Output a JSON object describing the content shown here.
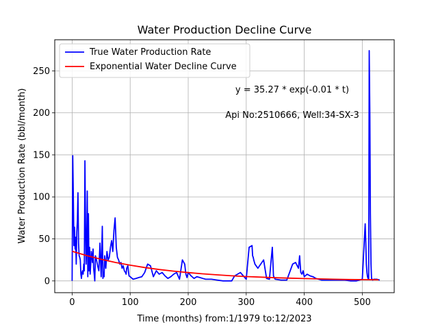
{
  "chart_data": {
    "type": "line",
    "title": "Water Production Decline Curve",
    "xlabel": "Time (months) from:1/1979 to:12/2023",
    "ylabel": "Water Production Rate (bbl/month)",
    "xlim": [
      -30,
      555
    ],
    "ylim": [
      -14,
      287
    ],
    "xticks": [
      0,
      100,
      200,
      300,
      400,
      500
    ],
    "yticks": [
      0,
      50,
      100,
      150,
      200,
      250
    ],
    "grid": true,
    "legend_position": "upper-left",
    "annotations": [
      "y = 35.27 * exp(-0.01 * t)",
      "Api No:2510666, Well:34-SX-3"
    ],
    "series": [
      {
        "name": "True Water Production Rate",
        "color": "#0000ff",
        "x": [
          0,
          1,
          2,
          3,
          4,
          5,
          6,
          7,
          8,
          9,
          10,
          11,
          12,
          13,
          14,
          15,
          16,
          17,
          18,
          19,
          20,
          21,
          22,
          23,
          24,
          25,
          26,
          27,
          28,
          29,
          30,
          31,
          32,
          33,
          34,
          35,
          36,
          37,
          38,
          39,
          40,
          42,
          44,
          46,
          48,
          50,
          52,
          53,
          54,
          55,
          56,
          58,
          60,
          62,
          64,
          66,
          68,
          70,
          72,
          74,
          76,
          78,
          80,
          82,
          84,
          86,
          88,
          90,
          92,
          93,
          94,
          96,
          98,
          100,
          105,
          110,
          115,
          120,
          125,
          130,
          135,
          140,
          145,
          150,
          155,
          160,
          165,
          170,
          175,
          180,
          185,
          190,
          194,
          196,
          198,
          200,
          205,
          210,
          215,
          220,
          225,
          230,
          240,
          250,
          260,
          270,
          275,
          280,
          290,
          300,
          305,
          310,
          311,
          312,
          313,
          315,
          320,
          325,
          330,
          335,
          340,
          345,
          347,
          349,
          350,
          360,
          370,
          380,
          385,
          390,
          392,
          394,
          396,
          398,
          400,
          405,
          410,
          415,
          420,
          425,
          430,
          440,
          450,
          460,
          470,
          480,
          490,
          500,
          505,
          506,
          507,
          508,
          509,
          510,
          511,
          512,
          513,
          514,
          515,
          516,
          517,
          518,
          520,
          525,
          530
        ],
        "y": [
          0,
          149,
          105,
          42,
          64,
          38,
          52,
          20,
          58,
          72,
          105,
          45,
          30,
          28,
          25,
          8,
          3,
          10,
          12,
          8,
          20,
          12,
          143,
          70,
          20,
          40,
          107,
          5,
          80,
          12,
          40,
          8,
          20,
          35,
          30,
          22,
          38,
          15,
          8,
          0,
          30,
          25,
          18,
          12,
          45,
          5,
          65,
          3,
          10,
          5,
          30,
          15,
          35,
          25,
          28,
          40,
          48,
          35,
          60,
          75,
          40,
          28,
          25,
          20,
          22,
          15,
          18,
          12,
          10,
          8,
          15,
          18,
          6,
          5,
          2,
          3,
          4,
          5,
          10,
          20,
          18,
          5,
          12,
          8,
          10,
          6,
          3,
          5,
          8,
          10,
          2,
          25,
          20,
          8,
          4,
          10,
          6,
          3,
          5,
          4,
          3,
          2,
          2,
          1,
          0,
          0,
          0,
          6,
          10,
          2,
          40,
          42,
          30,
          28,
          25,
          20,
          15,
          20,
          25,
          3,
          2,
          40,
          6,
          3,
          2,
          1,
          1,
          20,
          22,
          15,
          30,
          10,
          8,
          12,
          5,
          8,
          6,
          5,
          3,
          2,
          1,
          1,
          1,
          1,
          1,
          0,
          0,
          2,
          68,
          45,
          20,
          10,
          5,
          3,
          2,
          274,
          200,
          80,
          20,
          3,
          2,
          1,
          2,
          2,
          1
        ],
        "render_x": [
          0,
          1,
          2,
          3,
          4,
          5,
          6,
          7,
          8,
          9,
          10,
          11,
          12,
          13,
          14,
          15,
          16,
          17,
          18,
          19,
          20,
          21,
          22,
          23,
          24,
          25,
          26,
          27,
          28,
          29,
          30,
          31,
          32,
          33,
          34,
          35,
          36,
          37,
          38,
          39,
          40,
          42,
          44,
          46,
          48,
          50,
          52,
          53,
          54,
          55,
          56,
          58,
          60,
          62,
          64,
          66,
          68,
          70,
          72,
          74,
          76,
          78,
          80,
          82,
          84,
          86,
          88,
          90,
          92,
          93,
          94,
          96,
          98,
          100,
          105,
          110,
          115,
          120,
          125,
          130,
          135,
          140,
          145,
          150,
          155,
          160,
          165,
          170,
          175,
          180,
          185,
          190,
          194,
          196,
          198,
          200,
          205,
          210,
          215,
          220,
          225,
          230,
          240,
          250,
          260,
          270,
          275,
          280,
          290,
          300,
          305,
          310,
          311,
          312,
          313,
          315,
          320,
          325,
          330,
          335,
          340,
          345,
          347,
          349,
          350,
          360,
          370,
          380,
          385,
          390,
          392,
          394,
          396,
          398,
          400,
          405,
          410,
          415,
          420,
          425,
          430,
          440,
          450,
          460,
          470,
          480,
          490,
          500,
          505,
          506,
          507,
          508,
          509,
          510,
          511,
          512,
          513,
          514,
          515,
          516,
          517,
          518,
          520,
          525,
          530
        ]
      },
      {
        "name": "Exponential Water Decline Curve",
        "color": "#ff0000",
        "x": [
          0,
          25,
          50,
          75,
          100,
          125,
          150,
          175,
          200,
          225,
          250,
          275,
          300,
          325,
          350,
          375,
          400,
          425,
          450,
          475,
          500,
          528
        ],
        "y": [
          35.27,
          30.1,
          25.7,
          21.9,
          18.7,
          15.9,
          13.6,
          11.6,
          9.9,
          8.4,
          7.2,
          6.1,
          5.2,
          4.5,
          3.8,
          3.3,
          2.8,
          2.4,
          2.0,
          1.7,
          1.5,
          1.3
        ]
      }
    ]
  }
}
